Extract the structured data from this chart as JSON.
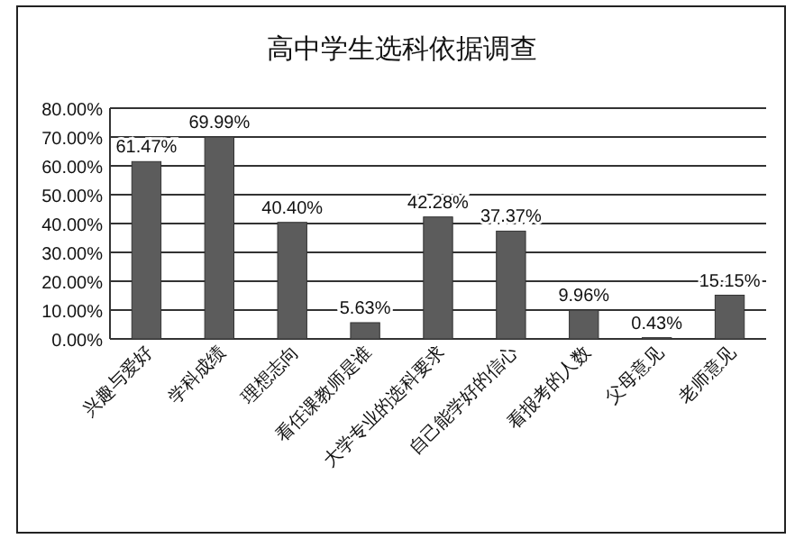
{
  "chart_data": {
    "type": "bar",
    "title": "高中学生选科依据调查",
    "categories": [
      "兴趣与爱好",
      "学科成绩",
      "理想志向",
      "看任课教师是谁",
      "大学专业的选科要求",
      "自己能学好的信心",
      "看报考的人数",
      "父母意见",
      "老师意见"
    ],
    "values": [
      61.47,
      69.99,
      40.4,
      5.63,
      42.28,
      37.37,
      9.96,
      0.43,
      15.15
    ],
    "value_labels": [
      "61.47%",
      "69.99%",
      "40.40%",
      "5.63%",
      "42.28%",
      "37.37%",
      "9.96%",
      "0.43%",
      "15.15%"
    ],
    "color": "#5c5c5c",
    "ylim": [
      0,
      80
    ],
    "yticks": [
      {
        "value": 0,
        "label": "0.00%"
      },
      {
        "value": 10,
        "label": "10.00%"
      },
      {
        "value": 20,
        "label": "20.00%"
      },
      {
        "value": 30,
        "label": "30.00%"
      },
      {
        "value": 40,
        "label": "40.00%"
      },
      {
        "value": 50,
        "label": "50.00%"
      },
      {
        "value": 60,
        "label": "60.00%"
      },
      {
        "value": 70,
        "label": "70.00%"
      },
      {
        "value": 80,
        "label": "80.00%"
      }
    ],
    "grid": "y"
  }
}
